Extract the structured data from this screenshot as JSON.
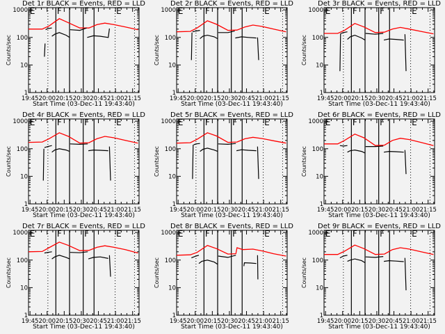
{
  "axes": {
    "xlabel": "Start Time (03-Dec-11 19:43:40)",
    "ylabel": "Counts/sec",
    "xlim_minutes": [
      0,
      97
    ],
    "ylim": [
      1,
      1200
    ],
    "yscale": "log",
    "xticks": [
      {
        "t": 1.33,
        "label": "19:45"
      },
      {
        "t": 16.33,
        "label": "20:00"
      },
      {
        "t": 31.33,
        "label": "20:15"
      },
      {
        "t": 46.33,
        "label": "20:30"
      },
      {
        "t": 61.33,
        "label": "20:45"
      },
      {
        "t": 76.33,
        "label": "21:00"
      },
      {
        "t": 91.33,
        "label": "21:15"
      }
    ],
    "yticks": [
      {
        "v": 1,
        "label": "1"
      },
      {
        "v": 10,
        "label": "10"
      },
      {
        "v": 100,
        "label": "100"
      },
      {
        "v": 1000,
        "label": "1000"
      }
    ],
    "dotted_markers": [
      17,
      76,
      93
    ],
    "solid_markers": [
      24,
      36,
      48,
      57.5
    ],
    "letters": [
      {
        "t": 0.5,
        "label": "E"
      },
      {
        "t": 24.3,
        "label": "F"
      },
      {
        "t": 48.3,
        "label": "F"
      },
      {
        "t": 76.3,
        "label": "E"
      }
    ],
    "colors": {
      "events": "#000000",
      "lld": "#ff0000",
      "background": "#f2f2f2"
    }
  },
  "chart_data": [
    {
      "type": "line",
      "title": "Det 1r BLACK = Events, RED = LLD",
      "red": [
        [
          0,
          200
        ],
        [
          12,
          200
        ],
        [
          18,
          260
        ],
        [
          27,
          480
        ],
        [
          35,
          340
        ],
        [
          45,
          220
        ],
        [
          53,
          220
        ],
        [
          60,
          290
        ],
        [
          67,
          330
        ],
        [
          75,
          290
        ],
        [
          85,
          240
        ],
        [
          96,
          190
        ]
      ],
      "black": [
        [
          [
            14,
            20
          ],
          [
            14.5,
            60
          ]
        ],
        [
          [
            15,
            190
          ],
          [
            17,
            210
          ],
          [
            20.5,
            220
          ]
        ],
        [
          [
            20.5,
            110
          ],
          [
            23,
            130
          ],
          [
            27,
            150
          ],
          [
            33,
            120
          ],
          [
            36,
            100
          ]
        ],
        [
          [
            36.5,
            190
          ],
          [
            45,
            180
          ],
          [
            51,
            220
          ]
        ],
        [
          [
            51.5,
            100
          ],
          [
            57,
            115
          ],
          [
            63,
            110
          ],
          [
            70,
            100
          ],
          [
            71,
            210
          ]
        ]
      ]
    },
    {
      "type": "line",
      "title": "Det 2r BLACK = Events, RED = LLD",
      "red": [
        [
          0,
          160
        ],
        [
          12,
          165
        ],
        [
          18,
          220
        ],
        [
          27,
          400
        ],
        [
          35,
          300
        ],
        [
          45,
          180
        ],
        [
          53,
          185
        ],
        [
          60,
          240
        ],
        [
          67,
          280
        ],
        [
          75,
          250
        ],
        [
          85,
          200
        ],
        [
          96,
          160
        ]
      ],
      "black": [
        [
          [
            13,
            15
          ],
          [
            13.5,
            150
          ]
        ],
        [
          [
            14,
            160
          ],
          [
            17,
            170
          ],
          [
            20.5,
            180
          ]
        ],
        [
          [
            20.5,
            90
          ],
          [
            23,
            110
          ],
          [
            27,
            120
          ],
          [
            33,
            105
          ],
          [
            36,
            90
          ]
        ],
        [
          [
            36.5,
            150
          ],
          [
            45,
            150
          ],
          [
            51,
            170
          ]
        ],
        [
          [
            51.5,
            95
          ],
          [
            57,
            105
          ],
          [
            63,
            100
          ],
          [
            70,
            95
          ]
        ],
        [
          [
            71,
            100
          ],
          [
            72,
            15
          ]
        ]
      ]
    },
    {
      "type": "line",
      "title": "Det 3r BLACK = Events, RED = LLD",
      "red": [
        [
          0,
          140
        ],
        [
          12,
          140
        ],
        [
          18,
          180
        ],
        [
          27,
          320
        ],
        [
          35,
          240
        ],
        [
          45,
          150
        ],
        [
          53,
          155
        ],
        [
          60,
          200
        ],
        [
          67,
          230
        ],
        [
          75,
          200
        ],
        [
          85,
          165
        ],
        [
          96,
          135
        ]
      ],
      "black": [
        [
          [
            14,
            6
          ],
          [
            14.5,
            140
          ]
        ],
        [
          [
            15,
            140
          ],
          [
            17,
            150
          ],
          [
            20.5,
            160
          ]
        ],
        [
          [
            20.5,
            85
          ],
          [
            23,
            105
          ],
          [
            27,
            120
          ],
          [
            33,
            95
          ],
          [
            36,
            80
          ]
        ],
        [
          [
            36.5,
            140
          ],
          [
            45,
            130
          ],
          [
            52,
            140
          ]
        ],
        [
          [
            52.5,
            80
          ],
          [
            57,
            88
          ],
          [
            63,
            85
          ],
          [
            70,
            80
          ]
        ],
        [
          [
            71,
            130
          ],
          [
            72,
            6
          ]
        ]
      ]
    },
    {
      "type": "line",
      "title": "Det 4r BLACK = Events, RED = LLD",
      "red": [
        [
          0,
          170
        ],
        [
          12,
          175
        ],
        [
          18,
          230
        ],
        [
          27,
          380
        ],
        [
          35,
          280
        ],
        [
          45,
          160
        ],
        [
          53,
          165
        ],
        [
          60,
          230
        ],
        [
          67,
          280
        ],
        [
          75,
          250
        ],
        [
          85,
          200
        ],
        [
          96,
          160
        ]
      ],
      "black": [
        [
          [
            13,
            7
          ],
          [
            13.5,
            100
          ]
        ],
        [
          [
            14,
            110
          ],
          [
            17,
            120
          ],
          [
            20.5,
            130
          ]
        ],
        [
          [
            20.5,
            75
          ],
          [
            23,
            90
          ],
          [
            27,
            100
          ],
          [
            33,
            90
          ],
          [
            36,
            80
          ]
        ],
        [
          [
            36.5,
            150
          ],
          [
            45,
            145
          ],
          [
            52,
            150
          ]
        ],
        [
          [
            52.5,
            85
          ],
          [
            57,
            90
          ],
          [
            63,
            88
          ],
          [
            70,
            85
          ]
        ],
        [
          [
            71,
            120
          ],
          [
            72,
            7
          ]
        ]
      ]
    },
    {
      "type": "line",
      "title": "Det 5r BLACK = Events, RED = LLD",
      "red": [
        [
          0,
          160
        ],
        [
          12,
          165
        ],
        [
          18,
          220
        ],
        [
          27,
          380
        ],
        [
          35,
          290
        ],
        [
          45,
          170
        ],
        [
          53,
          175
        ],
        [
          60,
          230
        ],
        [
          67,
          260
        ],
        [
          75,
          235
        ],
        [
          85,
          195
        ],
        [
          96,
          160
        ]
      ],
      "black": [
        [
          [
            14,
            8
          ],
          [
            14.5,
            140
          ]
        ],
        [
          [
            15,
            140
          ],
          [
            17,
            150
          ],
          [
            20.5,
            155
          ]
        ],
        [
          [
            20.5,
            80
          ],
          [
            23,
            95
          ],
          [
            27,
            105
          ],
          [
            33,
            90
          ],
          [
            36,
            80
          ]
        ],
        [
          [
            36.5,
            150
          ],
          [
            45,
            145
          ],
          [
            52,
            155
          ]
        ],
        [
          [
            52.5,
            85
          ],
          [
            57,
            92
          ],
          [
            63,
            88
          ],
          [
            70,
            85
          ]
        ],
        [
          [
            71,
            120
          ],
          [
            72,
            8
          ]
        ]
      ]
    },
    {
      "type": "line",
      "title": "Det 6r BLACK = Events, RED = LLD",
      "red": [
        [
          0,
          150
        ],
        [
          12,
          150
        ],
        [
          18,
          200
        ],
        [
          27,
          340
        ],
        [
          35,
          250
        ],
        [
          45,
          130
        ],
        [
          53,
          135
        ],
        [
          60,
          200
        ],
        [
          67,
          240
        ],
        [
          75,
          215
        ],
        [
          85,
          170
        ],
        [
          96,
          130
        ]
      ],
      "black": [
        [
          [
            14,
            130
          ],
          [
            17,
            125
          ],
          [
            20.5,
            130
          ]
        ],
        [
          [
            20.5,
            75
          ],
          [
            23,
            85
          ],
          [
            27,
            90
          ],
          [
            33,
            80
          ],
          [
            36,
            70
          ]
        ],
        [
          [
            36.5,
            120
          ],
          [
            45,
            120
          ],
          [
            52,
            125
          ]
        ],
        [
          [
            52.5,
            75
          ],
          [
            57,
            80
          ],
          [
            63,
            78
          ],
          [
            70,
            75
          ]
        ],
        [
          [
            71,
            90
          ],
          [
            72,
            12
          ]
        ]
      ]
    },
    {
      "type": "line",
      "title": "Det 7r BLACK = Events, RED = LLD",
      "red": [
        [
          0,
          200
        ],
        [
          12,
          205
        ],
        [
          18,
          280
        ],
        [
          27,
          450
        ],
        [
          35,
          340
        ],
        [
          45,
          220
        ],
        [
          53,
          225
        ],
        [
          60,
          290
        ],
        [
          67,
          330
        ],
        [
          75,
          290
        ],
        [
          85,
          240
        ],
        [
          96,
          180
        ]
      ],
      "black": [
        [
          [
            14,
            180
          ],
          [
            17,
            190
          ],
          [
            20.5,
            200
          ]
        ],
        [
          [
            20.5,
            110
          ],
          [
            23,
            130
          ],
          [
            27,
            150
          ],
          [
            33,
            125
          ],
          [
            36,
            110
          ]
        ],
        [
          [
            36.5,
            190
          ],
          [
            45,
            185
          ],
          [
            52,
            200
          ]
        ],
        [
          [
            52.5,
            110
          ],
          [
            57,
            125
          ],
          [
            63,
            130
          ],
          [
            70,
            115
          ]
        ],
        [
          [
            71,
            150
          ],
          [
            72,
            25
          ]
        ]
      ]
    },
    {
      "type": "line",
      "title": "Det 8r BLACK = Events, RED = LLD",
      "red": [
        [
          0,
          150
        ],
        [
          12,
          155
        ],
        [
          18,
          190
        ],
        [
          27,
          340
        ],
        [
          35,
          260
        ],
        [
          45,
          165
        ],
        [
          52,
          170
        ],
        [
          53,
          280
        ],
        [
          58,
          240
        ],
        [
          67,
          250
        ],
        [
          75,
          215
        ],
        [
          85,
          170
        ],
        [
          96,
          140
        ]
      ],
      "black": [
        [
          [
            13,
            120
          ],
          [
            17,
            140
          ],
          [
            19.5,
            150
          ]
        ],
        [
          [
            19.5,
            75
          ],
          [
            22,
            90
          ],
          [
            27,
            100
          ],
          [
            33,
            85
          ],
          [
            36,
            70
          ]
        ],
        [
          [
            36.5,
            140
          ],
          [
            45,
            125
          ],
          [
            52,
            150
          ]
        ],
        [
          [
            59,
            60
          ],
          [
            59.5,
            80
          ],
          [
            65,
            78
          ],
          [
            70,
            75
          ]
        ],
        [
          [
            71,
            150
          ],
          [
            71.3,
            20
          ]
        ]
      ]
    },
    {
      "type": "line",
      "title": "Det 9r BLACK = Events, RED = LLD",
      "red": [
        [
          0,
          160
        ],
        [
          12,
          160
        ],
        [
          18,
          210
        ],
        [
          27,
          350
        ],
        [
          35,
          260
        ],
        [
          45,
          160
        ],
        [
          53,
          165
        ],
        [
          60,
          240
        ],
        [
          67,
          280
        ],
        [
          75,
          250
        ],
        [
          85,
          200
        ],
        [
          96,
          160
        ]
      ],
      "black": [
        [
          [
            14,
            120
          ],
          [
            17,
            140
          ],
          [
            20.5,
            150
          ]
        ],
        [
          [
            20.5,
            90
          ],
          [
            23,
            100
          ],
          [
            27,
            110
          ],
          [
            33,
            95
          ],
          [
            36,
            80
          ]
        ],
        [
          [
            36.5,
            130
          ],
          [
            45,
            125
          ],
          [
            52,
            135
          ]
        ],
        [
          [
            52.5,
            90
          ],
          [
            57,
            95
          ],
          [
            63,
            92
          ],
          [
            70,
            88
          ]
        ],
        [
          [
            71,
            120
          ],
          [
            72,
            8
          ]
        ]
      ]
    }
  ]
}
